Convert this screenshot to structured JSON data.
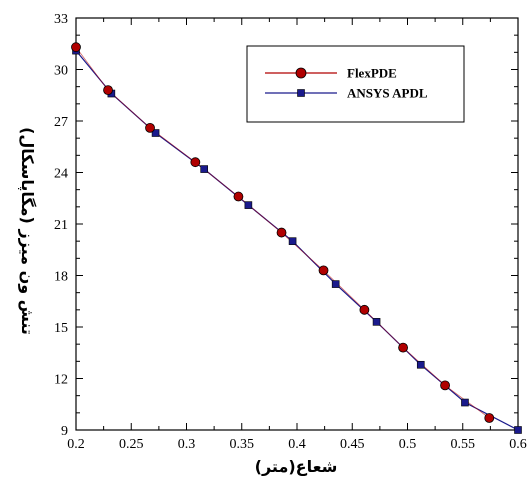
{
  "chart_data": {
    "type": "line",
    "xlabel": "شعاع(متر)",
    "ylabel": "تنش ون میزز (مگاپاسکال)",
    "xlim": [
      0.2,
      0.6
    ],
    "ylim": [
      9,
      33
    ],
    "xticks": [
      0.2,
      0.25,
      0.3,
      0.35,
      0.4,
      0.45,
      0.5,
      0.55,
      0.6
    ],
    "xtick_labels": [
      "0.2",
      "0.25",
      "0.3",
      "0.35",
      "0.4",
      "0.45",
      "0.5",
      "0.55",
      "0.6"
    ],
    "yticks": [
      9,
      12,
      15,
      18,
      21,
      24,
      27,
      30,
      33
    ],
    "ytick_labels": [
      "9",
      "12",
      "15",
      "18",
      "21",
      "24",
      "27",
      "30",
      "33"
    ],
    "grid": false,
    "legend_position": "top-right",
    "series": [
      {
        "name": "FlexPDE",
        "color": "#b00000",
        "marker": "circle",
        "x": [
          0.2,
          0.229,
          0.267,
          0.308,
          0.347,
          0.386,
          0.424,
          0.461,
          0.496,
          0.534,
          0.574
        ],
        "y": [
          31.3,
          28.8,
          26.6,
          24.6,
          22.6,
          20.5,
          18.3,
          16.0,
          13.8,
          11.6,
          9.7
        ]
      },
      {
        "name": "ANSYS APDL",
        "color": "#1a1a8c",
        "marker": "square",
        "x": [
          0.2,
          0.232,
          0.272,
          0.316,
          0.356,
          0.396,
          0.435,
          0.472,
          0.512,
          0.552,
          0.6
        ],
        "y": [
          31.1,
          28.6,
          26.3,
          24.2,
          22.1,
          20.0,
          17.5,
          15.3,
          12.8,
          10.6,
          9.0
        ]
      }
    ]
  }
}
